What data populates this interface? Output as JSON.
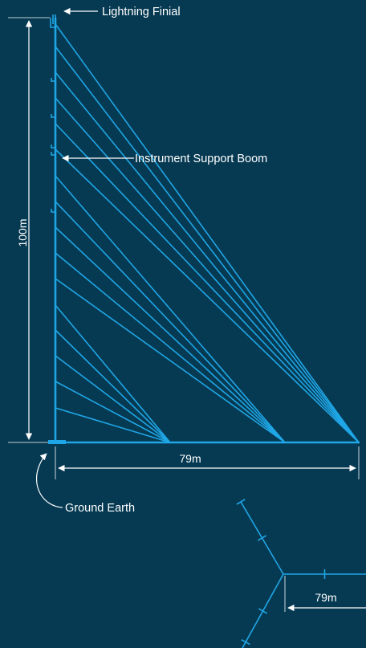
{
  "labels": {
    "lightning_finial": "Lightning Finial",
    "instrument_support_boom": "Instrument Support Boom",
    "ground_earth": "Ground Earth"
  },
  "dimensions": {
    "mast_height": "100m",
    "guy_radius_elevation": "79m",
    "guy_radius_plan": "79m"
  },
  "colors": {
    "background": "#063a52",
    "structure": "#1fa6e6",
    "annotation": "#ffffff"
  }
}
